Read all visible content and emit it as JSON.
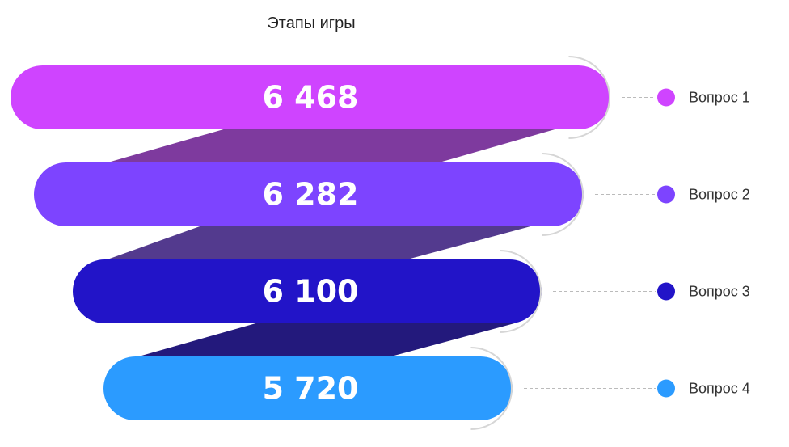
{
  "chart_data": {
    "type": "funnel",
    "title": "Этапы игры",
    "categories": [
      "Вопрос 1",
      "Вопрос 2",
      "Вопрос 3",
      "Вопрос 4"
    ],
    "values": [
      6468,
      6282,
      6100,
      5720
    ],
    "value_labels": [
      "6 468",
      "6 282",
      "6 100",
      "5 720"
    ],
    "colors": [
      "#cf44ff",
      "#7d44ff",
      "#2214c8",
      "#2b9bff"
    ],
    "connector_colors": [
      "#7e3a9e",
      "#533a8e",
      "#23197c"
    ],
    "legend": "right"
  }
}
